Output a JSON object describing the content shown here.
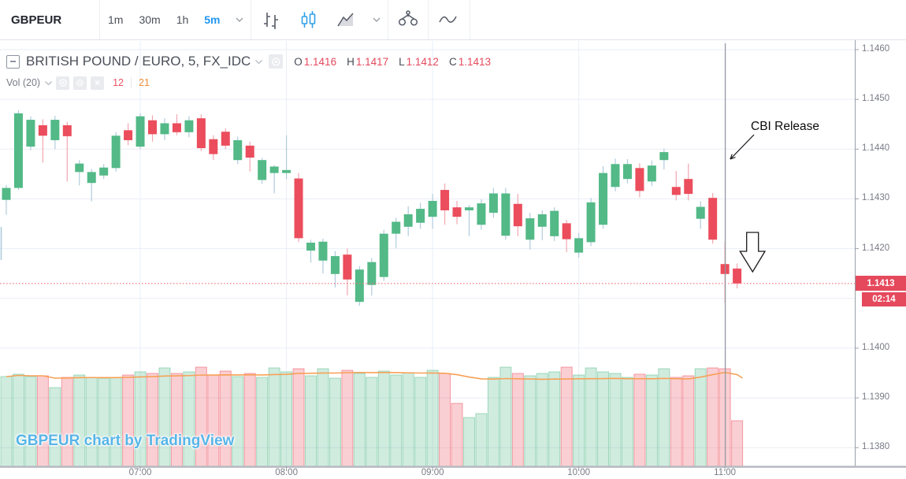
{
  "toolbar": {
    "symbol": "GBPEUR",
    "intervals": [
      {
        "label": "1m",
        "active": false
      },
      {
        "label": "30m",
        "active": false
      },
      {
        "label": "1h",
        "active": false
      },
      {
        "label": "5m",
        "active": true
      }
    ],
    "icons": [
      "bars-icon",
      "candles-icon",
      "area-chart-icon",
      "chevron-down-icon",
      "compare-scales-icon",
      "line-wave-icon",
      "camera-icon"
    ]
  },
  "legend": {
    "title": "BRITISH POUND / EURO, 5, FX_IDC",
    "ohlc": {
      "o_label": "O",
      "o": "1.1416",
      "h_label": "H",
      "h": "1.1417",
      "l_label": "L",
      "l": "1.1412",
      "c_label": "C",
      "c": "1.1413"
    },
    "volume_row": {
      "label": "Vol (20)",
      "close_glyph": "×",
      "value_1": "12",
      "value_2": "21"
    }
  },
  "annotations": {
    "cbi_text": "CBI Release",
    "event_time": "11:00"
  },
  "watermark": "GBPEUR chart by TradingView",
  "price_axis": {
    "labels": [
      "1.1460",
      "1.1450",
      "1.1440",
      "1.1430",
      "1.1420",
      "1.1400",
      "1.1390",
      "1.1380"
    ],
    "last_price_badge": "1.1413",
    "countdown_badge": "02:14"
  },
  "time_axis": {
    "labels": [
      "07:00",
      "08:00",
      "09:00",
      "10:00",
      "11:00"
    ]
  },
  "colors": {
    "up": "#53b987",
    "down": "#eb4d5c",
    "wick_up": "#afcbdd",
    "wick_down": "#f2a6b1",
    "volume_ma": "#f7a156",
    "grid": "#e9eef6",
    "axis_line": "#9aa0a8",
    "bottom_line": "#b6b9c0",
    "axis_text": "#787b86",
    "price_line": "#f56b77",
    "badge": "#e5495c",
    "event_line": "#91959e",
    "annotation": "#111111",
    "selected_interval": "#2196f3",
    "camera_button": "#3cb0e1",
    "watermark": "#57b5e8"
  },
  "chart_data": {
    "type": "candlestick+volume",
    "symbol": "GBPEUR",
    "interval_minutes": 5,
    "exchange": "FX_IDC",
    "ylim": [
      1.1376,
      1.1462
    ],
    "price_gridlines": [
      1.146,
      1.145,
      1.144,
      1.143,
      1.142,
      1.141,
      1.14,
      1.139,
      1.138
    ],
    "price_line": 1.1413,
    "volume_ma_window": 20,
    "candles_format": [
      "time",
      "open",
      "high",
      "low",
      "close",
      "volume_rel"
    ],
    "candles": [
      [
        "06:05",
        1.14298,
        1.14328,
        1.14268,
        1.14322,
        114
      ],
      [
        "06:10",
        1.14322,
        1.14478,
        1.14318,
        1.14472,
        117
      ],
      [
        "06:15",
        1.14405,
        1.14466,
        1.14398,
        1.14459,
        114
      ],
      [
        "06:20",
        1.14448,
        1.1446,
        1.14373,
        1.14427,
        115
      ],
      [
        "06:25",
        1.14418,
        1.14467,
        1.144,
        1.14459,
        100
      ],
      [
        "06:30",
        1.14448,
        1.14455,
        1.14335,
        1.14426,
        113
      ],
      [
        "06:35",
        1.14354,
        1.14378,
        1.14327,
        1.14371,
        116
      ],
      [
        "06:40",
        1.14332,
        1.1436,
        1.14295,
        1.14354,
        113
      ],
      [
        "06:45",
        1.14347,
        1.1437,
        1.1434,
        1.14363,
        112
      ],
      [
        "06:50",
        1.14362,
        1.14434,
        1.14355,
        1.14427,
        113
      ],
      [
        "06:55",
        1.14438,
        1.14452,
        1.14408,
        1.14418,
        116
      ],
      [
        "07:00",
        1.14405,
        1.14472,
        1.144,
        1.14466,
        120
      ],
      [
        "07:05",
        1.14458,
        1.14468,
        1.14415,
        1.1443,
        118
      ],
      [
        "07:10",
        1.1443,
        1.14462,
        1.14418,
        1.14452,
        125
      ],
      [
        "07:15",
        1.14452,
        1.1447,
        1.14428,
        1.14434,
        118
      ],
      [
        "07:20",
        1.14434,
        1.14466,
        1.14424,
        1.14458,
        120
      ],
      [
        "07:25",
        1.14462,
        1.1447,
        1.14396,
        1.14402,
        126
      ],
      [
        "07:30",
        1.1442,
        1.14428,
        1.14378,
        1.1439,
        116
      ],
      [
        "07:35",
        1.14435,
        1.14442,
        1.144,
        1.14407,
        121
      ],
      [
        "07:40",
        1.14378,
        1.14425,
        1.1437,
        1.14418,
        114
      ],
      [
        "07:45",
        1.14407,
        1.14415,
        1.14355,
        1.14383,
        118
      ],
      [
        "07:50",
        1.14338,
        1.14382,
        1.1433,
        1.14378,
        113
      ],
      [
        "07:55",
        1.14352,
        1.14368,
        1.14311,
        1.14365,
        125
      ],
      [
        "08:00",
        1.14352,
        1.14428,
        1.1434,
        1.14358,
        120
      ],
      [
        "08:05",
        1.14341,
        1.14352,
        1.14213,
        1.14221,
        124
      ],
      [
        "08:10",
        1.14196,
        1.14218,
        1.14172,
        1.14212,
        115
      ],
      [
        "08:15",
        1.14176,
        1.1422,
        1.1415,
        1.14214,
        124
      ],
      [
        "08:20",
        1.14149,
        1.14195,
        1.14122,
        1.14185,
        112
      ],
      [
        "08:25",
        1.14188,
        1.142,
        1.14106,
        1.14138,
        122
      ],
      [
        "08:30",
        1.14093,
        1.14165,
        1.14085,
        1.14158,
        118
      ],
      [
        "08:35",
        1.14127,
        1.14181,
        1.14106,
        1.14173,
        113
      ],
      [
        "08:40",
        1.14143,
        1.14238,
        1.14135,
        1.1423,
        121
      ],
      [
        "08:45",
        1.1423,
        1.14262,
        1.14201,
        1.14254,
        116
      ],
      [
        "08:50",
        1.14244,
        1.14285,
        1.14225,
        1.14269,
        119
      ],
      [
        "08:55",
        1.14252,
        1.14292,
        1.1424,
        1.1428,
        113
      ],
      [
        "09:00",
        1.14264,
        1.1431,
        1.1424,
        1.14296,
        122
      ],
      [
        "09:05",
        1.14318,
        1.14331,
        1.14248,
        1.14277,
        118
      ],
      [
        "09:10",
        1.14283,
        1.14296,
        1.14249,
        1.14264,
        80
      ],
      [
        "09:15",
        1.14277,
        1.14288,
        1.14225,
        1.14283,
        62
      ],
      [
        "09:20",
        1.14248,
        1.14299,
        1.14238,
        1.14291,
        67
      ],
      [
        "09:25",
        1.14272,
        1.14322,
        1.14262,
        1.14311,
        113
      ],
      [
        "09:30",
        1.14226,
        1.14322,
        1.14218,
        1.14311,
        126
      ],
      [
        "09:35",
        1.1429,
        1.1431,
        1.14225,
        1.14245,
        118
      ],
      [
        "09:40",
        1.14218,
        1.14272,
        1.14198,
        1.14261,
        115
      ],
      [
        "09:45",
        1.14244,
        1.14277,
        1.14217,
        1.14269,
        118
      ],
      [
        "09:50",
        1.14225,
        1.14283,
        1.14215,
        1.14276,
        120
      ],
      [
        "09:55",
        1.14251,
        1.14258,
        1.14193,
        1.14219,
        126
      ],
      [
        "10:00",
        1.14192,
        1.14232,
        1.14182,
        1.14221,
        116
      ],
      [
        "10:05",
        1.14213,
        1.14302,
        1.14205,
        1.14293,
        125
      ],
      [
        "10:10",
        1.14248,
        1.14366,
        1.1424,
        1.14352,
        120
      ],
      [
        "10:15",
        1.14324,
        1.14381,
        1.14315,
        1.1437,
        118
      ],
      [
        "10:20",
        1.1434,
        1.1438,
        1.14331,
        1.1437,
        113
      ],
      [
        "10:25",
        1.14362,
        1.14372,
        1.14303,
        1.14316,
        117
      ],
      [
        "10:30",
        1.14335,
        1.14377,
        1.14326,
        1.14367,
        116
      ],
      [
        "10:35",
        1.14378,
        1.14401,
        1.14359,
        1.14394,
        124
      ],
      [
        "10:40",
        1.14324,
        1.14356,
        1.14297,
        1.14308,
        113
      ],
      [
        "10:45",
        1.1434,
        1.14371,
        1.14297,
        1.1431,
        115
      ],
      [
        "10:50",
        1.1426,
        1.14295,
        1.1424,
        1.14284,
        124
      ],
      [
        "10:55",
        1.14302,
        1.14312,
        1.1421,
        1.14218,
        125
      ],
      [
        "11:00",
        1.14169,
        1.14214,
        1.14091,
        1.14149,
        124
      ],
      [
        "11:05",
        1.1416,
        1.1417,
        1.1412,
        1.1413,
        58
      ]
    ]
  }
}
